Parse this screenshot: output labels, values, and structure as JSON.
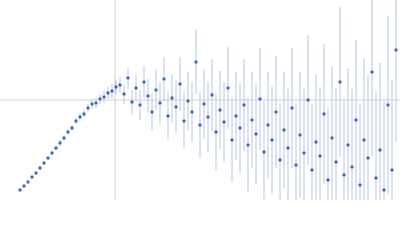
{
  "chart_data": {
    "type": "scatter",
    "x": [
      20,
      24,
      28,
      32,
      36,
      40,
      44,
      48,
      52,
      56,
      60,
      64,
      68,
      72,
      76,
      80,
      84,
      88,
      92,
      96,
      100,
      104,
      108,
      112,
      116,
      120,
      124,
      128,
      132,
      136,
      140,
      144,
      148,
      152,
      156,
      160,
      164,
      168,
      172,
      176,
      180,
      184,
      188,
      192,
      196,
      200,
      204,
      208,
      212,
      216,
      220,
      224,
      228,
      232,
      236,
      240,
      244,
      248,
      252,
      256,
      260,
      264,
      268,
      272,
      276,
      280,
      284,
      288,
      292,
      296,
      300,
      304,
      308,
      312,
      316,
      320,
      324,
      328,
      332,
      336,
      340,
      344,
      348,
      352,
      356,
      360,
      364,
      368,
      372,
      376,
      380,
      384,
      388,
      392,
      396
    ],
    "values": [
      10,
      14,
      18,
      23,
      27,
      32,
      37,
      42,
      47,
      52,
      57,
      62,
      68,
      72,
      79,
      83,
      86,
      92,
      96,
      97,
      101,
      103,
      107,
      109,
      113,
      115,
      106,
      122,
      98,
      112,
      95,
      118,
      104,
      88,
      110,
      97,
      121,
      84,
      102,
      93,
      116,
      79,
      99,
      88,
      138,
      75,
      96,
      83,
      105,
      68,
      90,
      78,
      112,
      60,
      84,
      72,
      95,
      55,
      80,
      66,
      101,
      48,
      75,
      60,
      88,
      40,
      70,
      52,
      92,
      35,
      65,
      47,
      100,
      30,
      58,
      44,
      86,
      20,
      62,
      38,
      118,
      25,
      55,
      33,
      80,
      15,
      60,
      42,
      128,
      22,
      50,
      10,
      95,
      30,
      150
    ],
    "errors": [
      1,
      1,
      1,
      1,
      1,
      2,
      2,
      2,
      2,
      2,
      3,
      3,
      3,
      3,
      3,
      4,
      4,
      4,
      5,
      5,
      5,
      6,
      6,
      7,
      7,
      8,
      10,
      11,
      12,
      13,
      15,
      16,
      17,
      18,
      20,
      21,
      22,
      23,
      24,
      26,
      27,
      28,
      29,
      30,
      32,
      33,
      34,
      35,
      36,
      38,
      39,
      40,
      41,
      42,
      44,
      45,
      46,
      47,
      48,
      50,
      51,
      52,
      53,
      54,
      56,
      57,
      58,
      59,
      60,
      62,
      63,
      64,
      65,
      66,
      68,
      69,
      70,
      71,
      72,
      74,
      75,
      76,
      77,
      78,
      80,
      81,
      82,
      83,
      84,
      86,
      87,
      88,
      89,
      90,
      92
    ],
    "color": "#3a68c0",
    "error_color": "#b4c6e8",
    "xlim": [
      0,
      400
    ],
    "ylim": [
      0,
      200
    ]
  }
}
